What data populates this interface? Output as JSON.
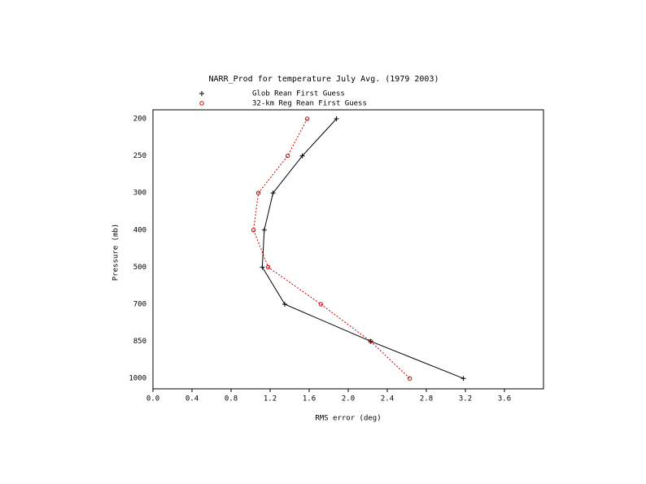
{
  "chart_data": {
    "type": "line",
    "title": "NARR_Prod for temperature July Avg. (1979 2003)",
    "x_label": "RMS error (deg)",
    "y_label": "Pressure (mb)",
    "categories": [
      "200",
      "250",
      "300",
      "400",
      "500",
      "700",
      "850",
      "1000"
    ],
    "series": [
      {
        "name": "Glob Rean First Guess",
        "color": "#000000",
        "marker": "plus",
        "dash": "solid",
        "values": [
          1.88,
          1.53,
          1.23,
          1.14,
          1.12,
          1.35,
          2.23,
          3.18
        ]
      },
      {
        "name": "32-km Reg Rean First Guess",
        "color": "#cc0000",
        "marker": "circle",
        "dash": "dotted",
        "values": [
          1.58,
          1.38,
          1.08,
          1.03,
          1.18,
          1.72,
          2.23,
          2.63
        ]
      }
    ],
    "xlim": [
      0,
      4.0
    ],
    "xticks": [
      {
        "value": 0,
        "label": "0.0"
      },
      {
        "value": 0.4,
        "label": "0.4"
      },
      {
        "value": 0.8,
        "label": "0.8"
      },
      {
        "value": 1.2,
        "label": "1.2"
      },
      {
        "value": 1.6,
        "label": "1.6"
      },
      {
        "value": 2.0,
        "label": "2.0"
      },
      {
        "value": 2.4,
        "label": "2.4"
      },
      {
        "value": 2.8,
        "label": "2.8"
      },
      {
        "value": 3.2,
        "label": "3.2"
      },
      {
        "value": 3.6,
        "label": "3.6"
      }
    ]
  }
}
